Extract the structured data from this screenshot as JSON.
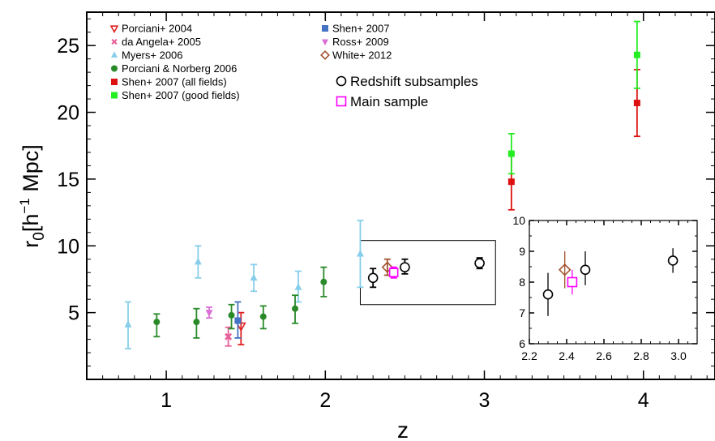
{
  "chart_data": {
    "type": "scatter",
    "xlabel": "z",
    "ylabel": "r",
    "ylabel_sub": "0",
    "ylabel_bracket_open": "[h",
    "ylabel_sup": "−1",
    "ylabel_unit": " Mpc]",
    "xlim": [
      0.5,
      4.45
    ],
    "ylim": [
      0,
      27.5
    ],
    "xticks": [
      1,
      2,
      3,
      4
    ],
    "xtick_labels": [
      "1",
      "2",
      "3",
      "4"
    ],
    "yticks": [
      5,
      10,
      15,
      20,
      25
    ],
    "ytick_labels": [
      "5",
      "10",
      "15",
      "20",
      "25"
    ],
    "legend_placement": "top-left",
    "series": [
      {
        "name": "Porciani+ 2004",
        "marker": "triangle-down-open",
        "color": "#dd2222",
        "points": [
          {
            "x": 1.47,
            "y": 4.0,
            "lo": 2.6,
            "hi": 5.0
          }
        ]
      },
      {
        "name": "da Angela+ 2005",
        "marker": "x-filled",
        "color": "#e8609a",
        "points": [
          {
            "x": 1.39,
            "y": 3.2,
            "lo": 2.5,
            "hi": 3.9
          }
        ]
      },
      {
        "name": "Myers+ 2006",
        "marker": "triangle-up",
        "color": "#87ceeb",
        "points": [
          {
            "x": 0.76,
            "y": 4.1,
            "lo": 2.3,
            "hi": 5.8
          },
          {
            "x": 1.2,
            "y": 8.8,
            "lo": 7.6,
            "hi": 10.0
          },
          {
            "x": 1.55,
            "y": 7.6,
            "lo": 6.6,
            "hi": 8.6
          },
          {
            "x": 1.83,
            "y": 6.9,
            "lo": 5.8,
            "hi": 8.1
          },
          {
            "x": 2.22,
            "y": 9.4,
            "lo": 6.9,
            "hi": 11.9
          }
        ]
      },
      {
        "name": "Porciani & Norberg 2006",
        "marker": "circle-filled",
        "color": "#2a8a2a",
        "points": [
          {
            "x": 0.94,
            "y": 4.3,
            "lo": 3.2,
            "hi": 4.9
          },
          {
            "x": 1.19,
            "y": 4.3,
            "lo": 3.1,
            "hi": 5.3
          },
          {
            "x": 1.41,
            "y": 4.8,
            "lo": 3.8,
            "hi": 5.6
          },
          {
            "x": 1.61,
            "y": 4.7,
            "lo": 3.8,
            "hi": 5.5
          },
          {
            "x": 1.81,
            "y": 5.3,
            "lo": 4.2,
            "hi": 6.3
          },
          {
            "x": 1.99,
            "y": 7.3,
            "lo": 6.2,
            "hi": 8.4
          }
        ]
      },
      {
        "name": "Shen+ 2007 (all fields)",
        "marker": "square-filled",
        "color": "#dd1111",
        "points": [
          {
            "x": 3.17,
            "y": 14.8,
            "lo": 12.7,
            "hi": 16.9
          },
          {
            "x": 3.96,
            "y": 20.7,
            "lo": 18.2,
            "hi": 23.2
          }
        ]
      },
      {
        "name": "Shen+ 2007 (good fields)",
        "marker": "square-filled",
        "color": "#22ee22",
        "points": [
          {
            "x": 3.17,
            "y": 16.9,
            "lo": 15.4,
            "hi": 18.4
          },
          {
            "x": 3.96,
            "y": 24.3,
            "lo": 21.8,
            "hi": 26.8
          }
        ]
      },
      {
        "name": "Shen+ 2007",
        "marker": "square-filled",
        "color": "#4472c4",
        "points": [
          {
            "x": 1.45,
            "y": 4.4,
            "lo": 3.1,
            "hi": 5.8
          }
        ]
      },
      {
        "name": "Ross+ 2009",
        "marker": "triangle-down",
        "color": "#da70d6",
        "points": [
          {
            "x": 1.27,
            "y": 5.0,
            "lo": 4.6,
            "hi": 5.4
          }
        ]
      },
      {
        "name": "White+ 2012",
        "marker": "diamond-open",
        "color": "#a0522d",
        "points": [
          {
            "x": 2.39,
            "y": 8.4,
            "lo": 7.8,
            "hi": 9.0
          }
        ]
      },
      {
        "name": "Redshift subsamples",
        "marker": "circle-open",
        "color": "#000000",
        "points": [
          {
            "x": 2.3,
            "y": 7.6,
            "lo": 6.9,
            "hi": 8.3
          },
          {
            "x": 2.5,
            "y": 8.4,
            "lo": 7.9,
            "hi": 9.0
          },
          {
            "x": 2.97,
            "y": 8.7,
            "lo": 8.3,
            "hi": 9.1
          }
        ]
      },
      {
        "name": "Main sample",
        "marker": "square-open",
        "color": "#ff00ff",
        "points": [
          {
            "x": 2.43,
            "y": 8.0,
            "lo": 7.6,
            "hi": 8.4
          }
        ]
      }
    ],
    "zoom_box": {
      "xlim": [
        2.22,
        3.07
      ],
      "ylim": [
        5.6,
        10.4
      ]
    },
    "inset": {
      "xlim": [
        2.2,
        3.1
      ],
      "ylim": [
        6,
        10
      ],
      "xticks": [
        2.2,
        2.4,
        2.6,
        2.8,
        3.0
      ],
      "xtick_labels": [
        "2.2",
        "2.4",
        "2.6",
        "2.8",
        "3.0"
      ],
      "yticks": [
        6,
        7,
        8,
        9,
        10
      ],
      "ytick_labels": [
        "6",
        "7",
        "8",
        "9",
        "10"
      ],
      "series_names": [
        "White+ 2012",
        "Main sample",
        "Redshift subsamples"
      ]
    },
    "legend_left": [
      "Porciani+ 2004",
      "da Angela+ 2005",
      "Myers+ 2006",
      "Porciani & Norberg 2006",
      "Shen+ 2007 (all fields)",
      "Shen+ 2007 (good fields)"
    ],
    "legend_right": [
      "Shen+ 2007",
      "Ross+ 2009",
      "White+ 2012"
    ],
    "legend_right_large": [
      "Redshift subsamples",
      "Main sample"
    ]
  }
}
